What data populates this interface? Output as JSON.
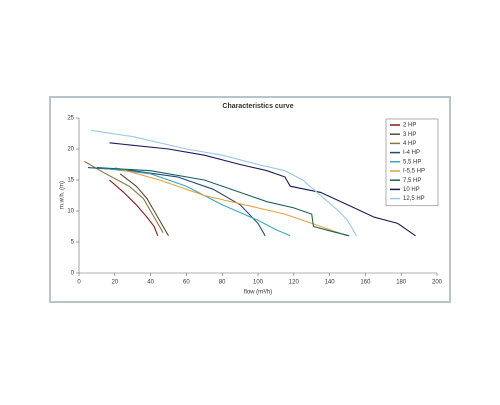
{
  "chart_data": {
    "type": "line",
    "title": "Characteristics curve",
    "x_label": "flow (m³/h)",
    "y_label": "m.w.h. (m)",
    "xlim": [
      0,
      200
    ],
    "xticks": [
      0,
      20,
      40,
      60,
      80,
      100,
      120,
      140,
      160,
      180,
      200
    ],
    "ylim": [
      0,
      25
    ],
    "yticks": [
      0,
      5,
      10,
      15,
      20,
      25
    ],
    "grid": false,
    "legend": "upper right",
    "series": [
      {
        "name": "2 HP",
        "color": "#8b1a1a",
        "x": [
          17,
          25,
          32,
          38,
          42,
          44
        ],
        "values": [
          15,
          13,
          11,
          9,
          7.5,
          6
        ]
      },
      {
        "name": "3 HP",
        "color": "#5a4a3e",
        "x": [
          23,
          32,
          38,
          42,
          46,
          50
        ],
        "values": [
          16,
          14,
          12,
          10,
          8,
          6
        ]
      },
      {
        "name": "4 HP",
        "color": "#8a7444",
        "x": [
          3,
          15,
          28,
          36,
          40,
          44,
          47
        ],
        "values": [
          18,
          16,
          14,
          12,
          10,
          8,
          6.5
        ]
      },
      {
        "name": "I-4 HP",
        "color": "#27497a",
        "x": [
          5,
          30,
          55,
          75,
          90,
          100,
          104
        ],
        "values": [
          17,
          16.5,
          15.5,
          13.5,
          11,
          8,
          6
        ]
      },
      {
        "name": "5,5 HP",
        "color": "#3aa9c0",
        "x": [
          10,
          40,
          60,
          80,
          100,
          110,
          118
        ],
        "values": [
          17,
          16,
          14,
          11,
          8.5,
          7,
          6
        ]
      },
      {
        "name": "I-5,5 HP",
        "color": "#e8a13a",
        "x": [
          20,
          45,
          70,
          100,
          115,
          130,
          140,
          150
        ],
        "values": [
          17,
          15,
          12.5,
          10.5,
          9.5,
          8,
          7,
          6
        ]
      },
      {
        "name": "7,5 HP",
        "color": "#1f5f5f",
        "x": [
          10,
          40,
          70,
          90,
          105,
          120,
          130,
          131,
          140,
          151
        ],
        "values": [
          17,
          16.5,
          15,
          13,
          11.5,
          10.5,
          9.5,
          7.5,
          6.8,
          6
        ]
      },
      {
        "name": "10 HP",
        "color": "#1a1a5c",
        "x": [
          17,
          50,
          70,
          90,
          105,
          115,
          118,
          135,
          150,
          165,
          178,
          183,
          188
        ],
        "values": [
          21,
          20,
          19,
          17.5,
          16.5,
          15.5,
          14,
          13,
          11,
          9,
          8,
          7,
          6
        ]
      },
      {
        "name": "12,5 HP",
        "color": "#9ac8e8",
        "x": [
          7,
          30,
          60,
          80,
          100,
          115,
          125,
          135,
          145,
          150,
          155
        ],
        "values": [
          23,
          22,
          20,
          19,
          17.5,
          16.5,
          15,
          12.5,
          10,
          8.5,
          6
        ]
      }
    ]
  }
}
